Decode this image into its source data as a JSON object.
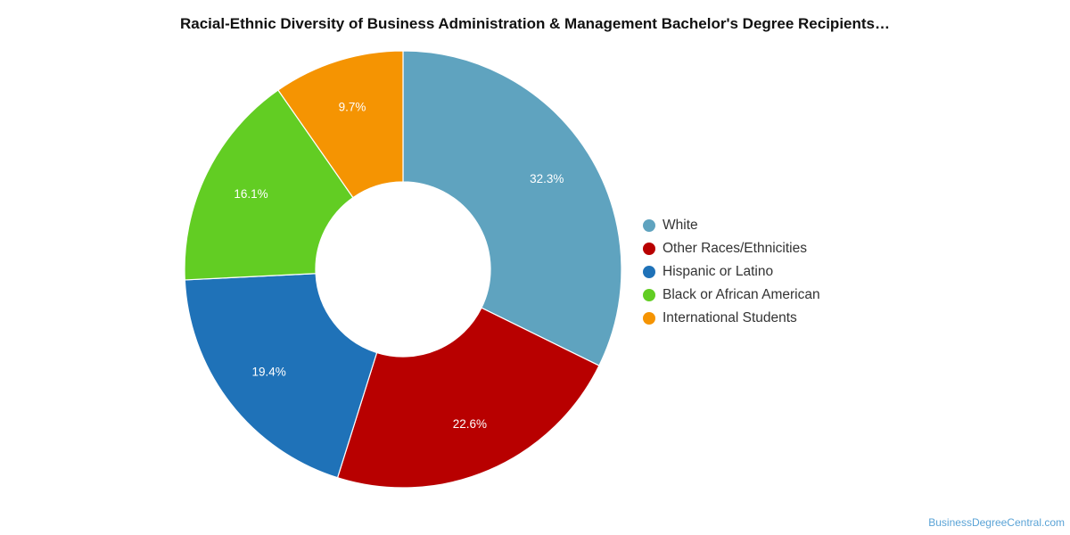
{
  "chart_data": {
    "type": "pie",
    "title": "Racial-Ethnic Diversity of Business Administration & Management Bachelor's Degree Recipients…",
    "donut": true,
    "categories": [
      "White",
      "Other Races/Ethnicities",
      "Hispanic or Latino",
      "Black or African American",
      "International Students"
    ],
    "values": [
      32.3,
      22.6,
      19.4,
      16.1,
      9.7
    ],
    "value_labels": [
      "32.3%",
      "22.6%",
      "19.4%",
      "16.1%",
      "9.7%"
    ],
    "colors": [
      "#5fa3bf",
      "#b80000",
      "#1f72b8",
      "#62cd23",
      "#f59402"
    ],
    "start_position": "12 o'clock",
    "direction": "clockwise",
    "legend_placement": "right"
  },
  "footer": {
    "source": "BusinessDegreeCentral.com"
  }
}
